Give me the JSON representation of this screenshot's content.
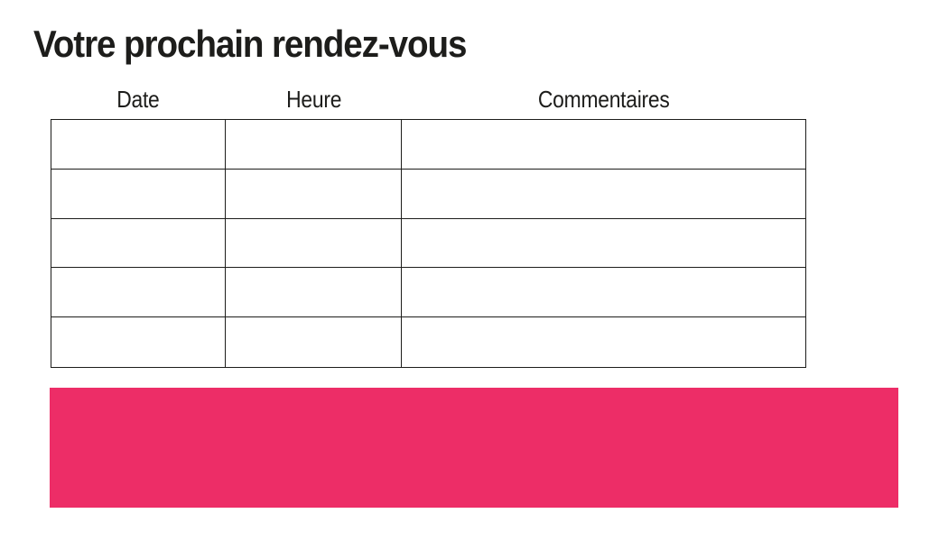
{
  "page": {
    "title": "Votre prochain rendez-vous"
  },
  "table": {
    "columns": [
      {
        "label": "Date"
      },
      {
        "label": "Heure"
      },
      {
        "label": "Commentaires"
      }
    ],
    "rows": [
      [
        "",
        "",
        ""
      ],
      [
        "",
        "",
        ""
      ],
      [
        "",
        "",
        ""
      ],
      [
        "",
        "",
        ""
      ],
      [
        "",
        "",
        ""
      ]
    ]
  },
  "colors": {
    "accent_pink": "#ED2D67",
    "ink": "#1D1D1B",
    "table_border": "#1D1D1B"
  }
}
